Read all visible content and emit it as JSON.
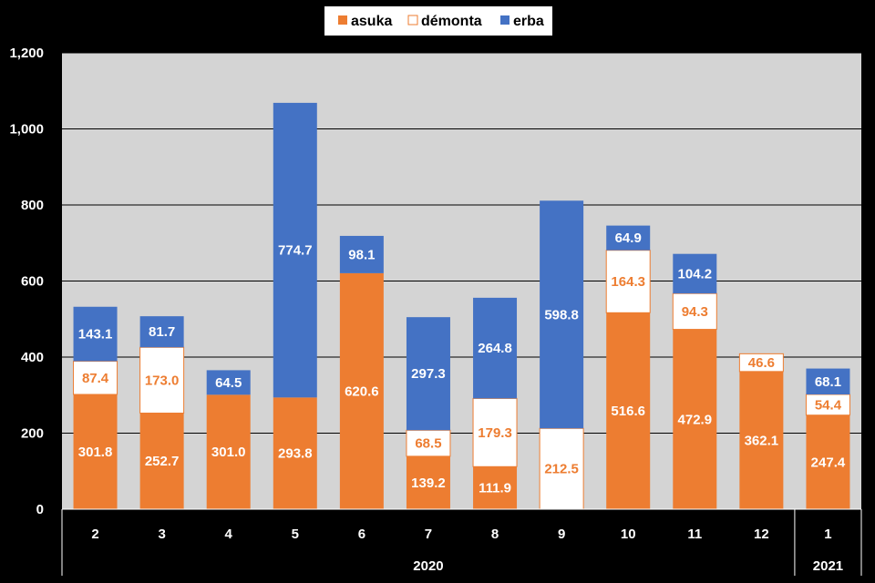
{
  "chart_data": {
    "type": "bar",
    "stacked": true,
    "categories": [
      "2",
      "3",
      "4",
      "5",
      "6",
      "7",
      "8",
      "9",
      "10",
      "11",
      "12",
      "1"
    ],
    "groups": [
      {
        "label": "2020",
        "span": 11
      },
      {
        "label": "2021",
        "span": 1
      }
    ],
    "series": [
      {
        "name": "asuka",
        "color": "#ED7D31",
        "label_color": "#FFFFFF",
        "values": [
          301.8,
          252.7,
          301.0,
          293.8,
          620.6,
          139.2,
          111.9,
          null,
          516.6,
          472.9,
          362.1,
          247.4
        ]
      },
      {
        "name": "démonta",
        "color": "#FFFFFF",
        "label_color": "#ED7D31",
        "values": [
          87.4,
          173.0,
          null,
          null,
          null,
          68.5,
          179.3,
          212.5,
          164.3,
          94.3,
          46.6,
          54.4
        ]
      },
      {
        "name": "erba",
        "color": "#4472C4",
        "label_color": "#FFFFFF",
        "values": [
          143.1,
          81.7,
          64.5,
          774.7,
          98.1,
          297.3,
          264.8,
          598.8,
          64.9,
          104.2,
          null,
          68.1
        ]
      }
    ],
    "yticks": [
      "0",
      "200",
      "400",
      "600",
      "800",
      "1,000",
      "1,200"
    ],
    "ylim": [
      0,
      1200
    ],
    "grid": true,
    "legend": "top-center",
    "plot_background": "#D4D4D4"
  }
}
